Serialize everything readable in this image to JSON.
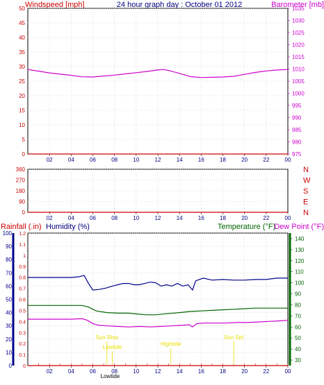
{
  "header": {
    "left_title": "Windspeed [mph]",
    "center_title": "24 hour graph day : October 01 2012",
    "right_title": "Barometer [mb]"
  },
  "labels": {
    "rainfall": "Rainfall (.in)",
    "humidity": "Humidity (%)",
    "temperature": "Temperature (°F)",
    "dewpoint": "Dew Point (°F)"
  },
  "colors": {
    "wind": "#cc0000",
    "baro": "#cc00cc",
    "rain_axis": "#cc0000",
    "humidity": "#00008b",
    "temperature": "#006400",
    "dewpoint": "#cc00cc",
    "annotation": "#e8e000",
    "grid": "#c8c8c8",
    "axis_text_dark": "#000080"
  },
  "chart_data": [
    {
      "type": "line",
      "name": "wind-barometer",
      "x_ticks": [
        "02",
        "04",
        "06",
        "08",
        "10",
        "12",
        "14",
        "16",
        "18",
        "20",
        "22",
        "00"
      ],
      "y_left": {
        "label": "Windspeed [mph]",
        "ticks": [
          "0",
          "5",
          "10",
          "15",
          "20",
          "25",
          "30",
          "35",
          "40",
          "45",
          "50"
        ],
        "range": [
          0,
          50
        ]
      },
      "y_right": {
        "label": "Barometer [mb]",
        "ticks": [
          "975",
          "980",
          "985",
          "990",
          "995",
          "1000",
          "1005",
          "1010",
          "1015",
          "1020",
          "1025",
          "1030",
          "1035"
        ],
        "range": [
          975,
          1035
        ]
      },
      "series": [
        {
          "name": "Barometer [mb]",
          "axis": "right",
          "x": [
            0,
            1,
            2,
            3,
            4,
            5,
            6,
            7,
            8,
            9,
            10,
            11,
            12,
            12.5,
            13,
            14,
            15,
            16,
            17,
            18,
            19,
            20,
            21,
            22,
            23,
            24
          ],
          "y": [
            1009.8,
            1009.1,
            1008.4,
            1007.9,
            1007.4,
            1006.8,
            1006.7,
            1007.1,
            1007.5,
            1008.0,
            1008.5,
            1009.0,
            1009.6,
            1009.8,
            1009.4,
            1008.2,
            1006.9,
            1006.5,
            1006.6,
            1006.7,
            1007.0,
            1007.8,
            1008.6,
            1009.2,
            1009.6,
            1009.8
          ]
        },
        {
          "name": "Windspeed [mph]",
          "axis": "left",
          "x": [
            0,
            24
          ],
          "y": [
            0,
            0
          ]
        }
      ]
    },
    {
      "type": "line",
      "name": "wind-direction",
      "x_ticks": [
        "02",
        "04",
        "06",
        "08",
        "10",
        "12",
        "14",
        "16",
        "18",
        "20",
        "22",
        "00"
      ],
      "y_left": {
        "ticks": [
          "0",
          "90",
          "180",
          "270",
          "360"
        ],
        "range": [
          0,
          360
        ]
      },
      "y_right": {
        "ticks": [
          "N",
          "W",
          "S",
          "E",
          "N"
        ]
      },
      "series": [
        {
          "name": "direction",
          "x": [
            0,
            24
          ],
          "y": [
            0,
            0
          ]
        }
      ]
    },
    {
      "type": "line",
      "name": "rain-humidity-temperature",
      "x_ticks": [
        "02",
        "04",
        "06",
        "08",
        "10",
        "12",
        "14",
        "16",
        "18",
        "20",
        "22",
        "00"
      ],
      "y_rain": {
        "ticks": [
          "0",
          "0.1",
          "0.2",
          "0.3",
          "0.4",
          "0.5",
          "0.6",
          "0.7",
          "0.8",
          "0.9",
          "1",
          "1.1",
          "1.2"
        ],
        "range": [
          0,
          1.2
        ]
      },
      "y_humidity": {
        "ticks": [
          "0",
          "10",
          "20",
          "30",
          "40",
          "50",
          "60",
          "70",
          "80",
          "90",
          "100"
        ],
        "range": [
          0,
          100
        ]
      },
      "y_temp": {
        "ticks": [
          "30",
          "40",
          "50",
          "60",
          "70",
          "80",
          "90",
          "100",
          "110",
          "120",
          "130",
          "140"
        ],
        "range": [
          25,
          145
        ]
      },
      "annotations": [
        {
          "text": "Sun Rise",
          "x": 7.3,
          "y_temp": 49
        },
        {
          "text": "Lowtide",
          "x": 7.8,
          "y_temp": 40
        },
        {
          "text": "Hightide",
          "x": 13.2,
          "y_temp": 43
        },
        {
          "text": "Sun Set",
          "x": 19.0,
          "y_temp": 49
        },
        {
          "text": "Lowtide",
          "x": 7.6,
          "y_temp": 20
        }
      ],
      "series": [
        {
          "name": "Humidity (%)",
          "axis": "humidity",
          "x": [
            0,
            2,
            4,
            4.7,
            5.2,
            5.6,
            6.0,
            6.6,
            7.2,
            7.8,
            8.3,
            8.8,
            9.3,
            9.8,
            10.3,
            10.8,
            11.3,
            11.8,
            12.3,
            12.8,
            13.3,
            13.8,
            14.3,
            14.8,
            15.2,
            15.5,
            16.2,
            17,
            18,
            19,
            20,
            21,
            22,
            23,
            24
          ],
          "y": [
            66.5,
            66.5,
            66.5,
            67,
            68,
            62,
            57,
            57.5,
            58.5,
            60,
            61,
            62,
            62,
            61,
            61,
            62,
            63,
            62.5,
            60,
            61,
            60,
            62,
            60,
            61,
            57,
            64,
            66,
            64.5,
            65,
            64.5,
            64.5,
            65,
            65,
            66,
            66
          ]
        },
        {
          "name": "Temperature (°F)",
          "axis": "temp",
          "x": [
            0,
            2,
            4,
            5,
            5.6,
            6.3,
            7.3,
            8.3,
            9.3,
            10.3,
            11,
            11.8,
            12.8,
            14,
            15,
            16,
            17,
            18,
            19,
            20,
            21,
            22,
            23,
            24
          ],
          "y": [
            79.5,
            79.5,
            79.5,
            79.5,
            78,
            74.5,
            73,
            72.5,
            72.5,
            71.5,
            71,
            71,
            72,
            73,
            74,
            74.5,
            75,
            75.5,
            76,
            76.5,
            77,
            77,
            77,
            77
          ]
        },
        {
          "name": "Dew Point (°F)",
          "axis": "temp",
          "x": [
            0,
            2,
            4,
            5,
            5.5,
            6,
            6.5,
            7.3,
            8.3,
            9.3,
            10.3,
            11.3,
            12.3,
            13.3,
            14.3,
            14.9,
            15.2,
            15.6,
            16.3,
            17.3,
            18.3,
            19.3,
            20.3,
            21.3,
            22.3,
            23.3,
            24
          ],
          "y": [
            67,
            67,
            67,
            67.5,
            66,
            63,
            61.5,
            61,
            60.5,
            60,
            60.5,
            60,
            60.5,
            61,
            61.5,
            62,
            60,
            63,
            63.5,
            63.5,
            63.5,
            64,
            64,
            64.5,
            65,
            65.5,
            66
          ]
        },
        {
          "name": "Rainfall (.in)",
          "axis": "rain",
          "x": [
            0,
            24
          ],
          "y": [
            0,
            0
          ]
        }
      ]
    }
  ]
}
